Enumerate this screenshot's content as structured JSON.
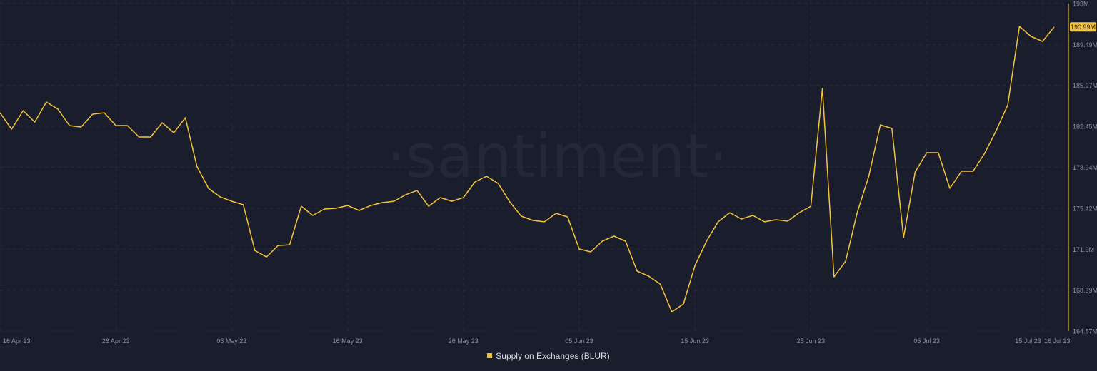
{
  "chart_data": {
    "type": "line",
    "title": "",
    "watermark": "·santiment·",
    "xlabel": "",
    "ylabel": "",
    "ylim": [
      164.87,
      193
    ],
    "y_ticks": [
      "193M",
      "189.49M",
      "185.97M",
      "182.45M",
      "178.94M",
      "175.42M",
      "171.9M",
      "168.39M",
      "164.87M"
    ],
    "y_tick_values": [
      193,
      189.49,
      185.97,
      182.45,
      178.94,
      175.42,
      171.9,
      168.39,
      164.87
    ],
    "x_ticks": [
      {
        "label": "16 Apr 23",
        "day": 0
      },
      {
        "label": "26 Apr 23",
        "day": 10
      },
      {
        "label": "06 May 23",
        "day": 20
      },
      {
        "label": "16 May 23",
        "day": 30
      },
      {
        "label": "26 May 23",
        "day": 40
      },
      {
        "label": "05 Jun 23",
        "day": 50
      },
      {
        "label": "15 Jun 23",
        "day": 60
      },
      {
        "label": "25 Jun 23",
        "day": 70
      },
      {
        "label": "05 Jul 23",
        "day": 80
      },
      {
        "label": "15 Jul 23",
        "day": 90
      },
      {
        "label": "16 Jul 23",
        "day": 91
      }
    ],
    "last_value_label": "190.99M",
    "grid": true,
    "legend_position": "bottom-center",
    "series": [
      {
        "name": "Supply on Exchanges (BLUR)",
        "color": "#f3c43b",
        "unit": "M",
        "values": [
          183.62,
          182.21,
          183.8,
          182.82,
          184.54,
          183.93,
          182.52,
          182.39,
          183.5,
          183.62,
          182.52,
          182.52,
          181.54,
          181.54,
          182.76,
          181.9,
          183.19,
          179.02,
          177.12,
          176.39,
          176.02,
          175.72,
          171.79,
          171.24,
          172.22,
          172.28,
          175.59,
          174.8,
          175.35,
          175.41,
          175.65,
          175.23,
          175.65,
          175.9,
          176.02,
          176.57,
          176.94,
          175.59,
          176.33,
          176.02,
          176.33,
          177.68,
          178.17,
          177.55,
          175.96,
          174.74,
          174.37,
          174.25,
          174.98,
          174.67,
          171.92,
          171.67,
          172.59,
          173.02,
          172.59,
          170.02,
          169.59,
          168.91,
          166.52,
          167.2,
          170.51,
          172.59,
          174.25,
          175.04,
          174.49,
          174.8,
          174.25,
          174.43,
          174.31,
          175.04,
          175.59,
          185.7,
          169.53,
          170.87,
          175.04,
          178.17,
          182.58,
          182.27,
          172.9,
          178.53,
          180.19,
          180.19,
          177.12,
          178.6,
          178.6,
          180.13,
          182.09,
          184.29,
          191.03,
          190.18,
          189.75,
          190.99
        ]
      }
    ]
  },
  "colors": {
    "background": "#1a1d2c",
    "grid": "#272b3b",
    "line": "#f3c43b",
    "axis": "#8a7230",
    "tick_text": "#8b90a3"
  }
}
